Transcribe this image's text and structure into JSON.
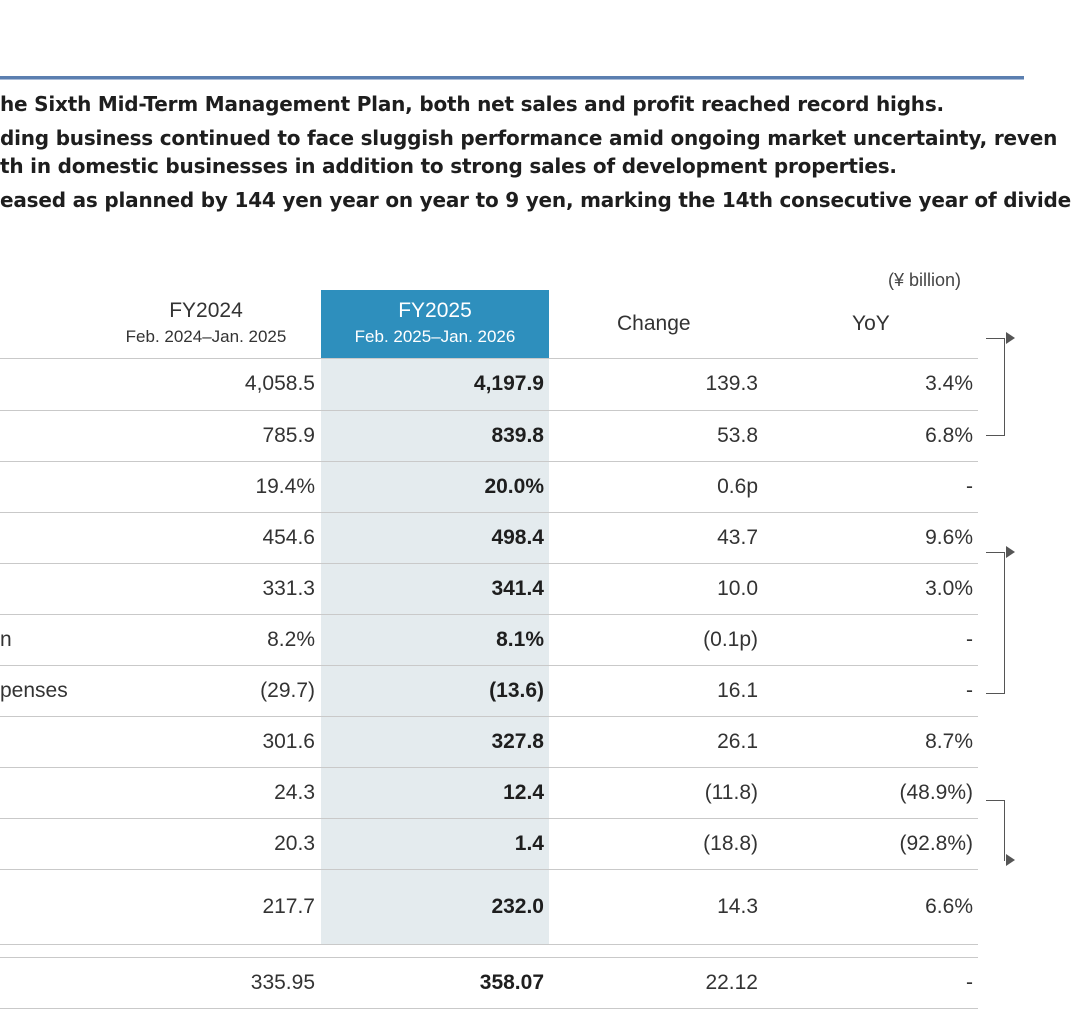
{
  "summary": {
    "bullets": [
      "he Sixth Mid-Term Management Plan, both net sales and profit reached record highs.",
      "ding business continued to face sluggish performance amid ongoing market uncertainty, reven",
      "th in domestic businesses in addition to strong sales of development properties.",
      "eased as planned by 144 yen year on year to 9 yen, marking the 14th consecutive year of divide"
    ]
  },
  "table": {
    "unit": "(¥ billion)",
    "headers": {
      "fy2024_year": "FY2024",
      "fy2024_period": "Feb. 2024–Jan. 2025",
      "fy2025_year": "FY2025",
      "fy2025_period": "Feb. 2025–Jan. 2026",
      "change": "Change",
      "yoy": "YoY"
    },
    "rows": [
      {
        "label": "",
        "fy2024": "4,058.5",
        "fy2025": "4,197.9",
        "change": "139.3",
        "yoy": "3.4%"
      },
      {
        "label": "",
        "fy2024": "785.9",
        "fy2025": "839.8",
        "change": "53.8",
        "yoy": "6.8%"
      },
      {
        "label": "",
        "fy2024": "19.4%",
        "fy2025": "20.0%",
        "change": "0.6p",
        "yoy": "-"
      },
      {
        "label": "",
        "fy2024": "454.6",
        "fy2025": "498.4",
        "change": "43.7",
        "yoy": "9.6%"
      },
      {
        "label": "",
        "fy2024": "331.3",
        "fy2025": "341.4",
        "change": "10.0",
        "yoy": "3.0%"
      },
      {
        "label": "n",
        "fy2024": "8.2%",
        "fy2025": "8.1%",
        "change": "(0.1p)",
        "yoy": "-"
      },
      {
        "label": "penses",
        "fy2024": "(29.7)",
        "fy2025": "(13.6)",
        "change": "16.1",
        "yoy": "-"
      },
      {
        "label": "",
        "fy2024": "301.6",
        "fy2025": "327.8",
        "change": "26.1",
        "yoy": "8.7%"
      },
      {
        "label": "",
        "fy2024": "24.3",
        "fy2025": "12.4",
        "change": "(11.8)",
        "yoy": "(48.9%)"
      },
      {
        "label": "",
        "fy2024": "20.3",
        "fy2025": "1.4",
        "change": "(18.8)",
        "yoy": "(92.8%)"
      },
      {
        "label": "",
        "fy2024": "217.7",
        "fy2025": "232.0",
        "change": "14.3",
        "yoy": "6.6%"
      },
      {
        "label": "",
        "fy2024": "335.95",
        "fy2025": "358.07",
        "change": "22.12",
        "yoy": "-"
      }
    ]
  }
}
